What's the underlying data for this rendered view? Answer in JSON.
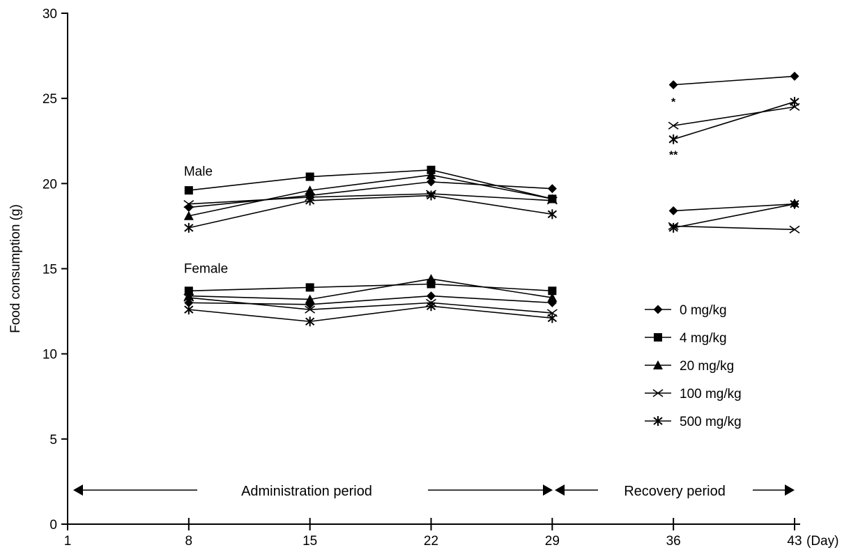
{
  "chart_data": {
    "type": "line",
    "ylabel": "Food consumption (g)",
    "xlabel": "",
    "x_unit_label": "(Day)",
    "ylim": [
      0,
      30
    ],
    "y_ticks": [
      0,
      5,
      10,
      15,
      20,
      25,
      30
    ],
    "xlim": [
      1,
      43
    ],
    "x_ticks": [
      1,
      8,
      15,
      22,
      29,
      36,
      43
    ],
    "grid": false,
    "legend_position": "right",
    "group_labels": [
      "Male",
      "Female"
    ],
    "period_labels": {
      "administration": "Administration period",
      "recovery": "Recovery period"
    },
    "annotations": [
      {
        "text": "*",
        "x": 36,
        "y": 24.9
      },
      {
        "text": "**",
        "x": 36,
        "y": 21.8
      }
    ],
    "series": [
      {
        "name": "0 mg/kg",
        "group": "Male",
        "marker": "diamond",
        "admin_x": [
          8,
          15,
          22,
          29
        ],
        "admin_y": [
          18.6,
          19.3,
          20.1,
          19.7
        ],
        "recovery_x": [
          36,
          43
        ],
        "recovery_y": [
          25.8,
          26.3
        ]
      },
      {
        "name": "4 mg/kg",
        "group": "Male",
        "marker": "square",
        "admin_x": [
          8,
          15,
          22,
          29
        ],
        "admin_y": [
          19.6,
          20.4,
          20.8,
          19.1
        ],
        "recovery_x": [],
        "recovery_y": []
      },
      {
        "name": "20 mg/kg",
        "group": "Male",
        "marker": "triangle",
        "admin_x": [
          8,
          15,
          22,
          29
        ],
        "admin_y": [
          18.1,
          19.6,
          20.5,
          19.1
        ],
        "recovery_x": [],
        "recovery_y": []
      },
      {
        "name": "100 mg/kg",
        "group": "Male",
        "marker": "x",
        "admin_x": [
          8,
          15,
          22,
          29
        ],
        "admin_y": [
          18.8,
          19.2,
          19.4,
          19.0
        ],
        "recovery_x": [
          36,
          43
        ],
        "recovery_y": [
          23.4,
          24.5
        ]
      },
      {
        "name": "500 mg/kg",
        "group": "Male",
        "marker": "asterisk",
        "admin_x": [
          8,
          15,
          22,
          29
        ],
        "admin_y": [
          17.4,
          19.0,
          19.3,
          18.2
        ],
        "recovery_x": [
          36,
          43
        ],
        "recovery_y": [
          22.6,
          24.8
        ]
      },
      {
        "name": "0 mg/kg",
        "group": "Female",
        "marker": "diamond",
        "admin_x": [
          8,
          15,
          22,
          29
        ],
        "admin_y": [
          13.0,
          12.9,
          13.4,
          13.0
        ],
        "recovery_x": [
          36,
          43
        ],
        "recovery_y": [
          18.4,
          18.8
        ]
      },
      {
        "name": "4 mg/kg",
        "group": "Female",
        "marker": "square",
        "admin_x": [
          8,
          15,
          22,
          29
        ],
        "admin_y": [
          13.7,
          13.9,
          14.1,
          13.7
        ],
        "recovery_x": [],
        "recovery_y": []
      },
      {
        "name": "20 mg/kg",
        "group": "Female",
        "marker": "triangle",
        "admin_x": [
          8,
          15,
          22,
          29
        ],
        "admin_y": [
          13.4,
          13.2,
          14.4,
          13.3
        ],
        "recovery_x": [],
        "recovery_y": []
      },
      {
        "name": "100 mg/kg",
        "group": "Female",
        "marker": "x",
        "admin_x": [
          8,
          15,
          22,
          29
        ],
        "admin_y": [
          13.3,
          12.6,
          13.0,
          12.4
        ],
        "recovery_x": [
          36,
          43
        ],
        "recovery_y": [
          17.5,
          17.3
        ]
      },
      {
        "name": "500 mg/kg",
        "group": "Female",
        "marker": "asterisk",
        "admin_x": [
          8,
          15,
          22,
          29
        ],
        "admin_y": [
          12.6,
          11.9,
          12.8,
          12.1
        ],
        "recovery_x": [
          36,
          43
        ],
        "recovery_y": [
          17.4,
          18.8
        ]
      }
    ],
    "legend": [
      {
        "name": "0 mg/kg",
        "marker": "diamond"
      },
      {
        "name": "4 mg/kg",
        "marker": "square"
      },
      {
        "name": "20 mg/kg",
        "marker": "triangle"
      },
      {
        "name": "100 mg/kg",
        "marker": "x"
      },
      {
        "name": "500 mg/kg",
        "marker": "asterisk"
      }
    ],
    "colors": {
      "line": "#000000",
      "background": "#ffffff"
    }
  }
}
